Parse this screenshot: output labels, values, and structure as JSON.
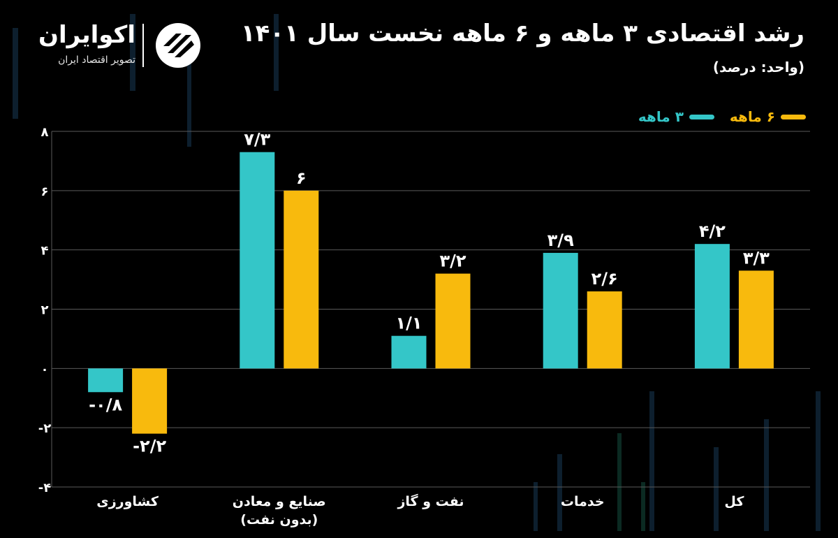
{
  "header": {
    "title": "رشد اقتصادی ۳ ماهه و ۶ ماهه نخست سال ۱۴۰۱",
    "subtitle": "(واحد: درصد)"
  },
  "brand": {
    "name": "اکوایران",
    "tagline": "تصویر اقتصاد ایران"
  },
  "colors": {
    "three_month": "#34C6C8",
    "six_month": "#F8BA0D",
    "grid": "#5a5a5a",
    "background": "#000000"
  },
  "chart_data": {
    "type": "bar",
    "categories": [
      "کشاورزی",
      "صنایع و معادن (بدون نفت)",
      "نفت و گاز",
      "خدمات",
      "کل"
    ],
    "category_lines": [
      [
        "کشاورزی"
      ],
      [
        "صنایع و معادن",
        "(بدون نفت)"
      ],
      [
        "نفت و گاز"
      ],
      [
        "خدمات"
      ],
      [
        "کل"
      ]
    ],
    "series": [
      {
        "name": "۳ ماهه",
        "values": [
          -0.8,
          7.3,
          1.1,
          3.9,
          4.2
        ],
        "labels": [
          "-۰/۸",
          "۷/۳",
          "۱/۱",
          "۳/۹",
          "۴/۲"
        ]
      },
      {
        "name": "۶ ماهه",
        "values": [
          -2.2,
          6,
          3.2,
          2.6,
          3.3
        ],
        "labels": [
          "-۲/۲",
          "۶",
          "۳/۲",
          "۲/۶",
          "۳/۳"
        ]
      }
    ],
    "y_ticks": [
      8,
      6,
      4,
      2,
      0,
      -2,
      -4
    ],
    "y_tick_labels": [
      "۸",
      "۶",
      "۴",
      "۲",
      "۰",
      "-۲",
      "-۴"
    ],
    "ylim": [
      -4,
      8
    ],
    "grid": true,
    "legend_position": "top-right"
  }
}
